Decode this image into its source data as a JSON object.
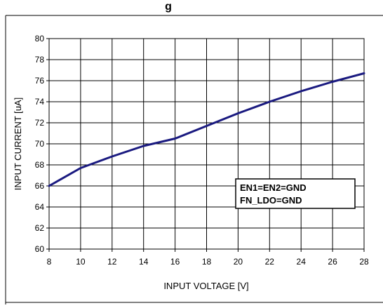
{
  "chart_data": {
    "type": "line",
    "title": "g",
    "xlabel": "INPUT VOLTAGE [V]",
    "ylabel": "INPUT CURRENT [uA]",
    "xlim": [
      8,
      28
    ],
    "ylim": [
      60,
      80
    ],
    "xticks": [
      8,
      10,
      12,
      14,
      16,
      18,
      20,
      22,
      24,
      26,
      28
    ],
    "yticks": [
      60,
      62,
      64,
      66,
      68,
      70,
      72,
      74,
      76,
      78,
      80
    ],
    "grid": true,
    "series": [
      {
        "color": "#1a1a80",
        "x": [
          8,
          10,
          12,
          14,
          16,
          18,
          20,
          22,
          24,
          26,
          28
        ],
        "y": [
          66.0,
          67.7,
          68.8,
          69.8,
          70.5,
          71.7,
          72.9,
          74.0,
          75.0,
          75.9,
          76.7
        ]
      }
    ],
    "annotation": {
      "lines": [
        "EN1=EN2=GND",
        "FN_LDO=GND"
      ],
      "position": "right-center"
    }
  }
}
